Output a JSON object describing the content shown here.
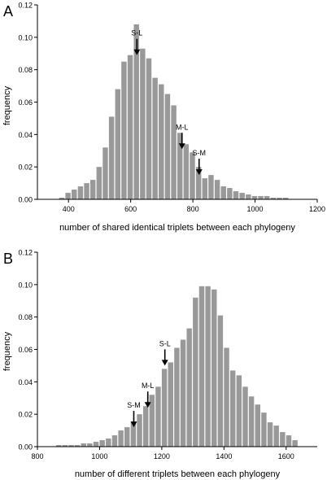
{
  "chart_data": [
    {
      "type": "bar",
      "panel_label": "A",
      "xlabel": "number of shared identical triplets between each phylogeny",
      "ylabel": "frequency",
      "xlim": [
        300,
        1200
      ],
      "ylim": [
        0,
        0.12
      ],
      "xticks": [
        "400",
        "600",
        "800",
        "1000",
        "1200"
      ],
      "yticks": [
        "0.00",
        "0.02",
        "0.04",
        "0.06",
        "0.08",
        "0.10",
        "0.12"
      ],
      "bar_color": "#999999",
      "x": [
        380,
        400,
        420,
        440,
        460,
        480,
        500,
        520,
        540,
        560,
        580,
        600,
        620,
        640,
        660,
        680,
        700,
        720,
        740,
        760,
        780,
        800,
        820,
        840,
        860,
        880,
        900,
        920,
        940,
        960,
        980,
        1000,
        1020,
        1040,
        1060,
        1080,
        1100
      ],
      "values": [
        0.001,
        0.004,
        0.006,
        0.008,
        0.01,
        0.012,
        0.02,
        0.032,
        0.051,
        0.068,
        0.085,
        0.089,
        0.108,
        0.093,
        0.087,
        0.075,
        0.071,
        0.065,
        0.058,
        0.041,
        0.034,
        0.029,
        0.02,
        0.013,
        0.015,
        0.012,
        0.008,
        0.007,
        0.005,
        0.004,
        0.003,
        0.002,
        0.002,
        0.002,
        0.001,
        0.001,
        0.001
      ],
      "annotations": [
        {
          "label": "S-L",
          "x": 620,
          "y": 0.088
        },
        {
          "label": "M-L",
          "x": 765,
          "y": 0.03
        },
        {
          "label": "S-M",
          "x": 820,
          "y": 0.014
        }
      ]
    },
    {
      "type": "bar",
      "panel_label": "B",
      "xlabel": "number of different triplets between each phylogeny",
      "ylabel": "frequency",
      "xlim": [
        800,
        1700
      ],
      "ylim": [
        0,
        0.12
      ],
      "xticks": [
        "800",
        "1000",
        "1200",
        "1400",
        "1600"
      ],
      "yticks": [
        "0.00",
        "0.02",
        "0.04",
        "0.06",
        "0.08",
        "0.10",
        "0.12"
      ],
      "bar_color": "#999999",
      "x": [
        870,
        890,
        910,
        930,
        950,
        970,
        990,
        1010,
        1030,
        1050,
        1070,
        1090,
        1110,
        1130,
        1150,
        1170,
        1190,
        1210,
        1230,
        1250,
        1270,
        1290,
        1310,
        1330,
        1350,
        1370,
        1390,
        1410,
        1430,
        1450,
        1470,
        1490,
        1510,
        1530,
        1550,
        1570,
        1590,
        1610,
        1630
      ],
      "values": [
        0.001,
        0.001,
        0.001,
        0.001,
        0.002,
        0.002,
        0.003,
        0.004,
        0.005,
        0.007,
        0.01,
        0.012,
        0.015,
        0.02,
        0.025,
        0.032,
        0.037,
        0.048,
        0.052,
        0.061,
        0.066,
        0.073,
        0.092,
        0.099,
        0.099,
        0.097,
        0.081,
        0.061,
        0.047,
        0.044,
        0.037,
        0.031,
        0.026,
        0.021,
        0.015,
        0.013,
        0.009,
        0.007,
        0.004
      ],
      "annotations": [
        {
          "label": "S-M",
          "x": 1110,
          "y": 0.011
        },
        {
          "label": "M-L",
          "x": 1155,
          "y": 0.023
        },
        {
          "label": "S-L",
          "x": 1210,
          "y": 0.049
        }
      ]
    }
  ]
}
